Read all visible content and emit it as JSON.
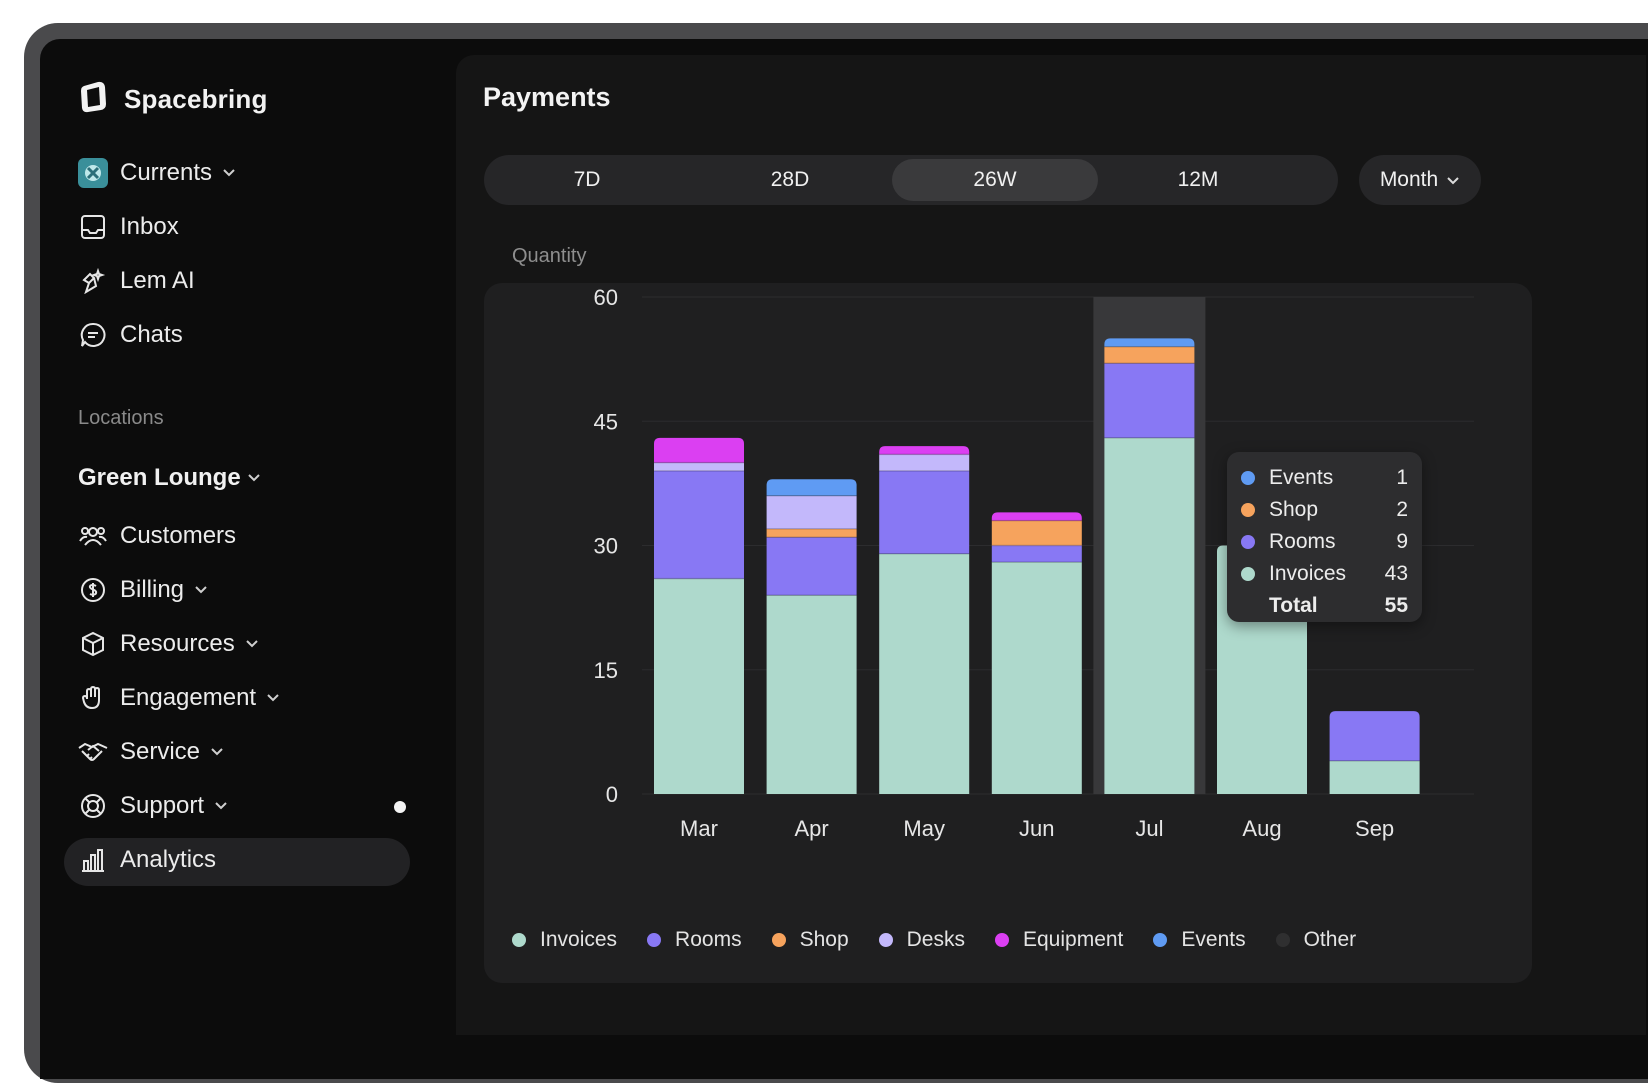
{
  "app": {
    "brand": "Spacebring"
  },
  "sidebar": {
    "workspace": "Currents",
    "items_top": [
      {
        "label": "Inbox",
        "icon": "inbox-icon"
      },
      {
        "label": "Lem AI",
        "icon": "ai-sparkle-icon"
      },
      {
        "label": "Chats",
        "icon": "chat-icon"
      }
    ],
    "locations_label": "Locations",
    "location_name": "Green Lounge",
    "items_location": [
      {
        "label": "Customers",
        "icon": "users-icon",
        "dropdown": false
      },
      {
        "label": "Billing",
        "icon": "dollar-icon",
        "dropdown": true
      },
      {
        "label": "Resources",
        "icon": "box-icon",
        "dropdown": true
      },
      {
        "label": "Engagement",
        "icon": "hand-icon",
        "dropdown": true
      },
      {
        "label": "Service",
        "icon": "handshake-icon",
        "dropdown": true
      },
      {
        "label": "Support",
        "icon": "lifebuoy-icon",
        "dropdown": true
      },
      {
        "label": "Analytics",
        "icon": "bar-chart-icon",
        "dropdown": false,
        "active": true
      }
    ]
  },
  "main": {
    "title": "Payments",
    "ranges": [
      "7D",
      "28D",
      "26W",
      "12M"
    ],
    "active_range": "26W",
    "granularity": "Month",
    "y_axis_label": "Quantity"
  },
  "colors": {
    "Invoices": "#aed9cc",
    "Rooms": "#8878f4",
    "Shop": "#f6a35d",
    "Desks": "#c3b8fb",
    "Equipment": "#db3ff2",
    "Events": "#5f9bf3",
    "Other": "#2f2f30"
  },
  "chart_data": {
    "type": "bar",
    "stacked": true,
    "ylabel": "Quantity",
    "ylim": [
      0,
      60
    ],
    "yticks": [
      0,
      15,
      30,
      45,
      60
    ],
    "categories": [
      "Mar",
      "Apr",
      "May",
      "Jun",
      "Jul",
      "Aug",
      "Sep"
    ],
    "series": [
      {
        "name": "Invoices",
        "values": [
          26,
          24,
          29,
          28,
          43,
          30,
          4
        ]
      },
      {
        "name": "Rooms",
        "values": [
          13,
          7,
          10,
          2,
          9,
          0,
          6
        ]
      },
      {
        "name": "Shop",
        "values": [
          0,
          1,
          0,
          3,
          2,
          0,
          0
        ]
      },
      {
        "name": "Desks",
        "values": [
          1,
          4,
          2,
          0,
          0,
          0,
          0
        ]
      },
      {
        "name": "Equipment",
        "values": [
          3,
          0,
          1,
          1,
          0,
          0,
          0
        ]
      },
      {
        "name": "Events",
        "values": [
          0,
          2,
          0,
          0,
          1,
          0,
          0
        ]
      },
      {
        "name": "Other",
        "values": [
          0,
          0,
          0,
          0,
          0,
          0,
          0
        ]
      }
    ],
    "highlighted_category": "Jul",
    "grid": true,
    "legend_position": "bottom"
  },
  "tooltip": {
    "rows": [
      {
        "name": "Events",
        "value": "1"
      },
      {
        "name": "Shop",
        "value": "2"
      },
      {
        "name": "Rooms",
        "value": "9"
      },
      {
        "name": "Invoices",
        "value": "43"
      }
    ],
    "total_label": "Total",
    "total_value": "55"
  }
}
